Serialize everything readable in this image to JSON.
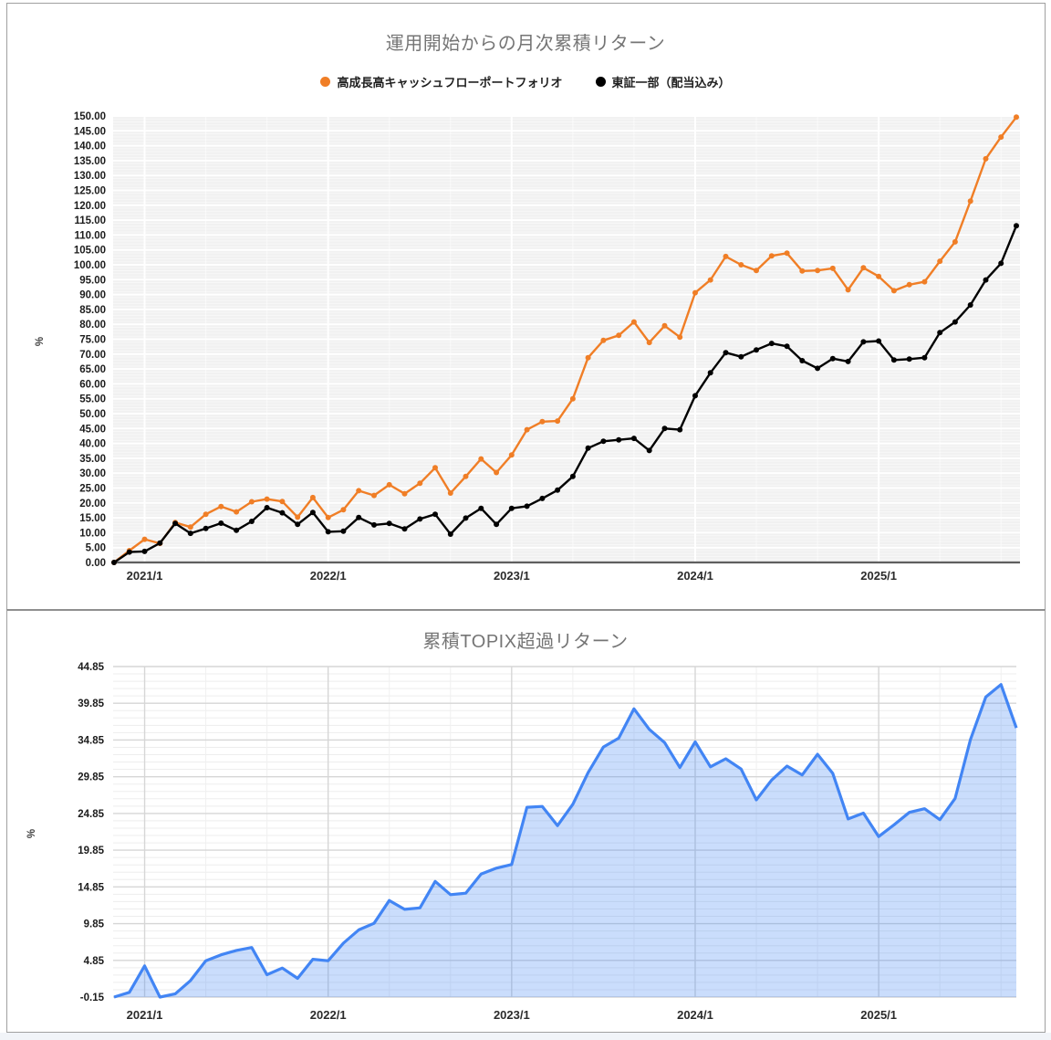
{
  "page_title": "運用開始からの月次累積リターン / 累積TOPIX超過リターン",
  "colors": {
    "portfolio": "#f07e26",
    "benchmark": "#000000",
    "excess_line": "#4285f4",
    "excess_fill": "rgba(66,133,244,0.28)",
    "plot_bg_top": "#f1f1f1",
    "title_gray": "#757575"
  },
  "chart_data": [
    {
      "type": "line",
      "title": "運用開始からの月次累積リターン",
      "xlabel": "",
      "ylabel": "%",
      "ylim": [
        0,
        150
      ],
      "y_tick_step": 5,
      "y_tick_decimals": 2,
      "grid": "on",
      "legend_position": "top",
      "x_tick_labels": [
        "2021/1",
        "2022/1",
        "2023/1",
        "2024/1",
        "2025/1"
      ],
      "x_tick_month_indices": [
        2,
        14,
        26,
        38,
        50
      ],
      "categories": [
        "2020/11",
        "2020/12",
        "2021/1",
        "2021/2",
        "2021/3",
        "2021/4",
        "2021/5",
        "2021/6",
        "2021/7",
        "2021/8",
        "2021/9",
        "2021/10",
        "2021/11",
        "2021/12",
        "2022/1",
        "2022/2",
        "2022/3",
        "2022/4",
        "2022/5",
        "2022/6",
        "2022/7",
        "2022/8",
        "2022/9",
        "2022/10",
        "2022/11",
        "2022/12",
        "2023/1",
        "2023/2",
        "2023/3",
        "2023/4",
        "2023/5",
        "2023/6",
        "2023/7",
        "2023/8",
        "2023/9",
        "2023/10",
        "2023/11",
        "2023/12",
        "2024/1",
        "2024/2",
        "2024/3",
        "2024/4",
        "2024/5",
        "2024/6",
        "2024/7",
        "2024/8",
        "2024/9",
        "2024/10",
        "2024/11",
        "2024/12",
        "2025/1",
        "2025/2",
        "2025/3",
        "2025/4",
        "2025/5",
        "2025/6",
        "2025/7",
        "2025/8",
        "2025/9",
        "2025/10"
      ],
      "series": [
        {
          "name": "高成長高キャッシュフローポートフォリオ",
          "color": "#f07e26",
          "marker": "circle",
          "values": [
            0.0,
            4.0,
            7.8,
            6.4,
            13.4,
            11.9,
            16.2,
            18.8,
            17.0,
            20.4,
            21.3,
            20.5,
            15.2,
            21.8,
            15.1,
            17.7,
            24.1,
            22.5,
            26.1,
            23.1,
            26.6,
            31.8,
            23.3,
            28.9,
            34.8,
            30.2,
            36.1,
            44.6,
            47.3,
            47.5,
            55.0,
            68.8,
            74.6,
            76.3,
            80.8,
            73.9,
            79.5,
            75.7,
            90.6,
            94.9,
            102.8,
            100.0,
            98.1,
            103.0,
            103.9,
            97.9,
            98.1,
            98.8,
            91.6,
            99.0,
            96.1,
            91.3,
            93.3,
            94.3,
            101.2,
            107.7,
            121.4,
            135.6,
            142.9,
            149.6
          ]
        },
        {
          "name": "東証一部（配当込み）",
          "color": "#000000",
          "marker": "circle",
          "values": [
            0.0,
            3.5,
            3.7,
            6.5,
            13.1,
            9.8,
            11.4,
            13.2,
            10.8,
            13.8,
            18.4,
            16.7,
            12.8,
            16.8,
            10.3,
            10.5,
            15.1,
            12.6,
            13.1,
            11.3,
            14.6,
            16.2,
            9.5,
            14.9,
            18.2,
            12.8,
            18.2,
            18.9,
            21.5,
            24.3,
            28.9,
            38.4,
            40.7,
            41.2,
            41.7,
            37.6,
            45.0,
            44.6,
            56.0,
            63.7,
            70.5,
            69.1,
            71.4,
            73.6,
            72.6,
            67.8,
            65.2,
            68.5,
            67.5,
            74.1,
            74.4,
            68.0,
            68.3,
            68.8,
            77.2,
            80.8,
            86.5,
            94.9,
            100.5,
            113.1
          ]
        }
      ]
    },
    {
      "type": "area",
      "title": "累積TOPIX超過リターン",
      "xlabel": "",
      "ylabel": "%",
      "ylim": [
        -0.15,
        44.85
      ],
      "y_tick_step": 5,
      "y_tick_decimals": 2,
      "grid": "on",
      "legend_position": "none",
      "x_tick_labels": [
        "2021/1",
        "2022/1",
        "2023/1",
        "2024/1",
        "2025/1"
      ],
      "x_tick_month_indices": [
        2,
        14,
        26,
        38,
        50
      ],
      "categories": [
        "2020/11",
        "2020/12",
        "2021/1",
        "2021/2",
        "2021/3",
        "2021/4",
        "2021/5",
        "2021/6",
        "2021/7",
        "2021/8",
        "2021/9",
        "2021/10",
        "2021/11",
        "2021/12",
        "2022/1",
        "2022/2",
        "2022/3",
        "2022/4",
        "2022/5",
        "2022/6",
        "2022/7",
        "2022/8",
        "2022/9",
        "2022/10",
        "2022/11",
        "2022/12",
        "2023/1",
        "2023/2",
        "2023/3",
        "2023/4",
        "2023/5",
        "2023/6",
        "2023/7",
        "2023/8",
        "2023/9",
        "2023/10",
        "2023/11",
        "2023/12",
        "2024/1",
        "2024/2",
        "2024/3",
        "2024/4",
        "2024/5",
        "2024/6",
        "2024/7",
        "2024/8",
        "2024/9",
        "2024/10",
        "2024/11",
        "2024/12",
        "2025/1",
        "2025/2",
        "2025/3",
        "2025/4",
        "2025/5",
        "2025/6",
        "2025/7",
        "2025/8",
        "2025/9",
        "2025/10"
      ],
      "series": [
        {
          "name": "累積TOPIX超過リターン",
          "color": "#4285f4",
          "fill": "rgba(66,133,244,0.28)",
          "values": [
            -0.15,
            0.5,
            4.1,
            -0.15,
            0.3,
            2.1,
            4.8,
            5.6,
            6.2,
            6.6,
            2.9,
            3.8,
            2.4,
            5.0,
            4.8,
            7.2,
            9.0,
            9.9,
            13.0,
            11.8,
            12.0,
            15.6,
            13.8,
            14.0,
            16.6,
            17.4,
            17.9,
            25.7,
            25.8,
            23.2,
            26.1,
            30.4,
            33.9,
            35.1,
            39.1,
            36.3,
            34.5,
            31.1,
            34.6,
            31.2,
            32.3,
            30.9,
            26.7,
            29.4,
            31.3,
            30.1,
            32.9,
            30.3,
            24.1,
            24.9,
            21.7,
            23.3,
            25.0,
            25.5,
            24.0,
            26.9,
            34.9,
            40.7,
            42.4,
            36.5
          ]
        }
      ]
    }
  ]
}
